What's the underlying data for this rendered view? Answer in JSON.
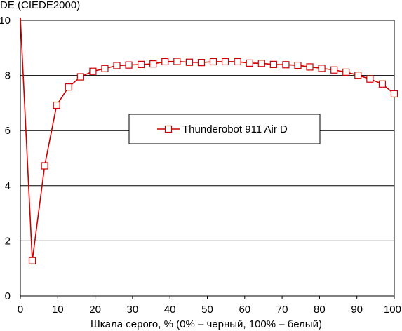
{
  "chart_data": {
    "type": "line",
    "ylabel": "DE (CIEDE2000)",
    "xlabel": "Шкала серого, % (0% – черный, 100% – белый)",
    "xlim": [
      0,
      100
    ],
    "ylim": [
      0,
      10
    ],
    "xticks": [
      "0",
      "10",
      "20",
      "30",
      "40",
      "50",
      "60",
      "70",
      "80",
      "90",
      "100"
    ],
    "yticks": [
      "0",
      "2",
      "4",
      "6",
      "8",
      "10"
    ],
    "grid": "horizontal",
    "legend_position": "center",
    "series": [
      {
        "name": "Thunderobot 911 Air D",
        "color": "#cc0000",
        "marker": "open-square",
        "x": [
          0,
          3.2,
          6.5,
          9.7,
          12.9,
          16.1,
          19.4,
          22.6,
          25.8,
          29.0,
          32.3,
          35.5,
          38.7,
          41.9,
          45.2,
          48.4,
          51.6,
          54.8,
          58.1,
          61.3,
          64.5,
          67.7,
          71.0,
          74.2,
          77.4,
          80.6,
          83.9,
          87.1,
          90.3,
          93.5,
          96.8,
          100
        ],
        "y": [
          10.1,
          1.28,
          4.72,
          6.92,
          7.58,
          7.95,
          8.15,
          8.25,
          8.36,
          8.38,
          8.4,
          8.42,
          8.5,
          8.51,
          8.48,
          8.47,
          8.5,
          8.5,
          8.5,
          8.45,
          8.44,
          8.4,
          8.39,
          8.37,
          8.31,
          8.26,
          8.2,
          8.12,
          8.01,
          7.87,
          7.69,
          7.33
        ]
      }
    ]
  }
}
